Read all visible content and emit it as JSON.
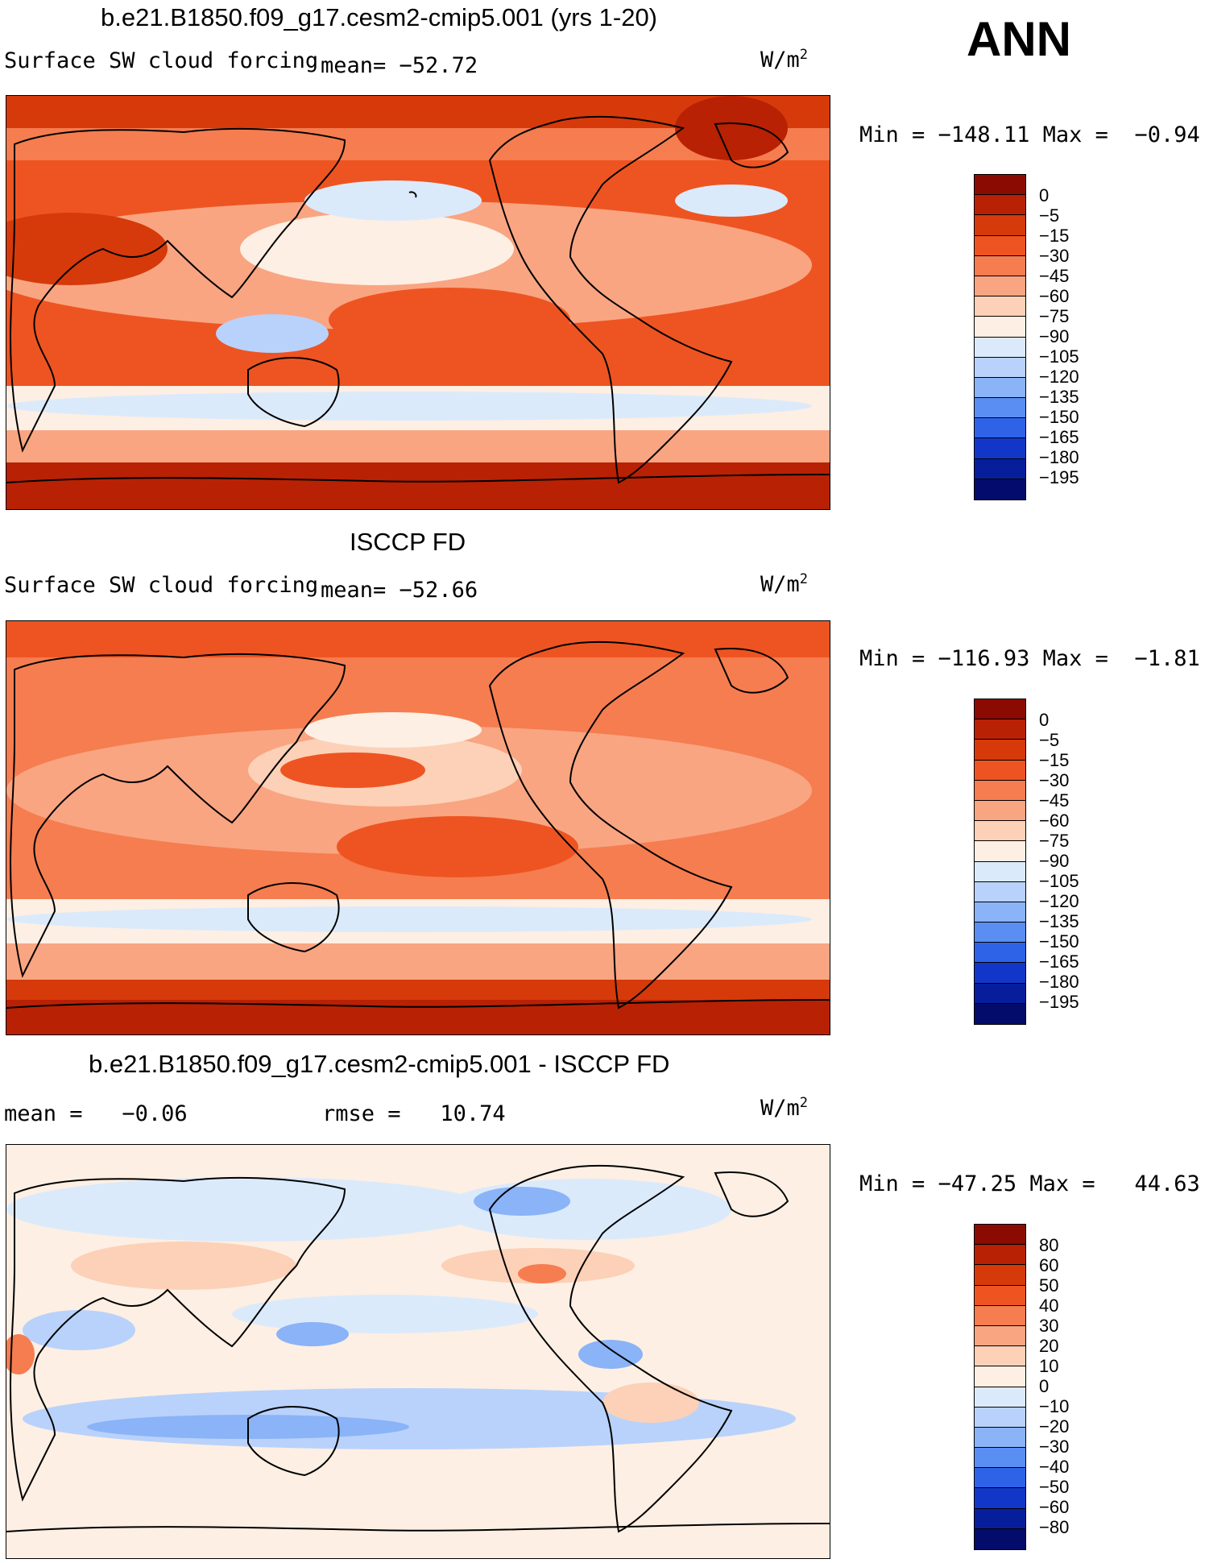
{
  "season": "ANN",
  "panels": [
    {
      "title": "b.e21.B1850.f09_g17.cesm2-cmip5.001 (yrs 1-20)",
      "variable": "Surface SW cloud forcing",
      "mean_label": "mean=",
      "mean_value": "−52.72",
      "units": "W/m",
      "units_exp": "2",
      "min_label": "Min",
      "min_value": "−148.11",
      "max_label": "Max",
      "max_value": "−0.94",
      "colorbar": {
        "labels": [
          "0",
          "−5",
          "−15",
          "−30",
          "−45",
          "−60",
          "−75",
          "−90",
          "−105",
          "−120",
          "−135",
          "−150",
          "−165",
          "−180",
          "−195"
        ],
        "colors": [
          "#8b0a02",
          "#b82104",
          "#d63a0a",
          "#ee5421",
          "#f57d50",
          "#f9a582",
          "#fcd1b7",
          "#fdefe3",
          "#dbeafb",
          "#b9d2fb",
          "#8ab3f8",
          "#5a8ef2",
          "#2e63e8",
          "#1237c8",
          "#071e9c",
          "#030c6a"
        ]
      },
      "legend_sep": "="
    },
    {
      "title": "ISCCP FD",
      "variable": "Surface SW cloud forcing",
      "mean_label": "mean=",
      "mean_value": "−52.66",
      "units": "W/m",
      "units_exp": "2",
      "min_label": "Min",
      "min_value": "−116.93",
      "max_label": "Max",
      "max_value": "−1.81",
      "colorbar": {
        "labels": [
          "0",
          "−5",
          "−15",
          "−30",
          "−45",
          "−60",
          "−75",
          "−90",
          "−105",
          "−120",
          "−135",
          "−150",
          "−165",
          "−180",
          "−195"
        ],
        "colors": [
          "#8b0a02",
          "#b82104",
          "#d63a0a",
          "#ee5421",
          "#f57d50",
          "#f9a582",
          "#fcd1b7",
          "#fdefe3",
          "#dbeafb",
          "#b9d2fb",
          "#8ab3f8",
          "#5a8ef2",
          "#2e63e8",
          "#1237c8",
          "#071e9c",
          "#030c6a"
        ]
      }
    },
    {
      "title": "b.e21.B1850.f09_g17.cesm2-cmip5.001 - ISCCP FD",
      "mean_label": "mean =",
      "mean_value": "−0.06",
      "rmse_label": "rmse =",
      "rmse_value": "10.74",
      "units": "W/m",
      "units_exp": "2",
      "min_label": "Min",
      "min_value": "−47.25",
      "max_label": "Max",
      "max_value": "44.63",
      "colorbar": {
        "labels": [
          "80",
          "60",
          "50",
          "40",
          "30",
          "20",
          "10",
          "0",
          "−10",
          "−20",
          "−30",
          "−40",
          "−50",
          "−60",
          "−80"
        ],
        "colors": [
          "#8b0a02",
          "#b82104",
          "#d63a0a",
          "#ee5421",
          "#f57d50",
          "#f9a582",
          "#fcd1b7",
          "#fdefe3",
          "#dbeafb",
          "#b9d2fb",
          "#8ab3f8",
          "#5a8ef2",
          "#2e63e8",
          "#1237c8",
          "#071e9c",
          "#030c6a"
        ]
      }
    }
  ]
}
